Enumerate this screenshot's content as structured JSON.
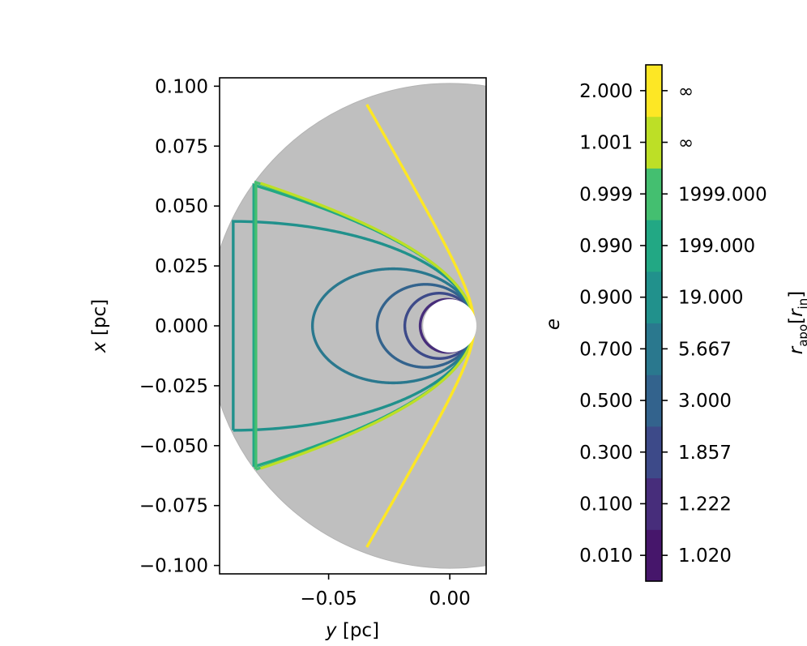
{
  "chart_data": {
    "type": "line",
    "xlabel_html": [
      "y",
      " [pc]"
    ],
    "ylabel_html": [
      "x",
      " [pc]"
    ],
    "xlim": [
      -0.095,
      0.015
    ],
    "ylim": [
      -0.1035,
      0.1035
    ],
    "xticks": [
      {
        "value": -0.05,
        "label": "−0.05"
      },
      {
        "value": 0.0,
        "label": "0.00"
      }
    ],
    "yticks": [
      {
        "value": 0.1,
        "label": "0.100"
      },
      {
        "value": 0.075,
        "label": "0.075"
      },
      {
        "value": 0.05,
        "label": "0.050"
      },
      {
        "value": 0.025,
        "label": "0.025"
      },
      {
        "value": 0.0,
        "label": "0.000"
      },
      {
        "value": -0.025,
        "label": "−0.025"
      },
      {
        "value": -0.05,
        "label": "−0.050"
      },
      {
        "value": -0.075,
        "label": "−0.075"
      },
      {
        "value": -0.1,
        "label": "−0.100"
      }
    ],
    "outer_radius": 0.1,
    "inner_radius": 0.011,
    "r_peri": 0.01,
    "series": [
      {
        "e": 0.01,
        "color": "#46166b"
      },
      {
        "e": 0.1,
        "color": "#472d7b"
      },
      {
        "e": 0.3,
        "color": "#3d4a89"
      },
      {
        "e": 0.5,
        "color": "#33638d"
      },
      {
        "e": 0.7,
        "color": "#2a788e"
      },
      {
        "e": 0.9,
        "color": "#21918c"
      },
      {
        "e": 0.99,
        "color": "#22a884"
      },
      {
        "e": 0.999,
        "color": "#44bf70"
      },
      {
        "e": 1.001,
        "color": "#bddf26"
      },
      {
        "e": 2.0,
        "color": "#fde725"
      }
    ],
    "colorbar": {
      "left_label": "e",
      "right_label": [
        "r",
        "apo",
        "[",
        "r",
        "in",
        "]"
      ],
      "bands": [
        {
          "e": "0.010",
          "r_apo": "1.020",
          "color": "#46166b"
        },
        {
          "e": "0.100",
          "r_apo": "1.222",
          "color": "#472d7b"
        },
        {
          "e": "0.300",
          "r_apo": "1.857",
          "color": "#3d4a89"
        },
        {
          "e": "0.500",
          "r_apo": "3.000",
          "color": "#33638d"
        },
        {
          "e": "0.700",
          "r_apo": "5.667",
          "color": "#2a788e"
        },
        {
          "e": "0.900",
          "r_apo": "19.000",
          "color": "#21918c"
        },
        {
          "e": "0.990",
          "r_apo": "199.000",
          "color": "#22a884"
        },
        {
          "e": "0.999",
          "r_apo": "1999.000",
          "color": "#44bf70"
        },
        {
          "e": "1.001",
          "r_apo": "∞",
          "color": "#bddf26"
        },
        {
          "e": "2.000",
          "r_apo": "∞",
          "color": "#fde725"
        }
      ]
    }
  }
}
